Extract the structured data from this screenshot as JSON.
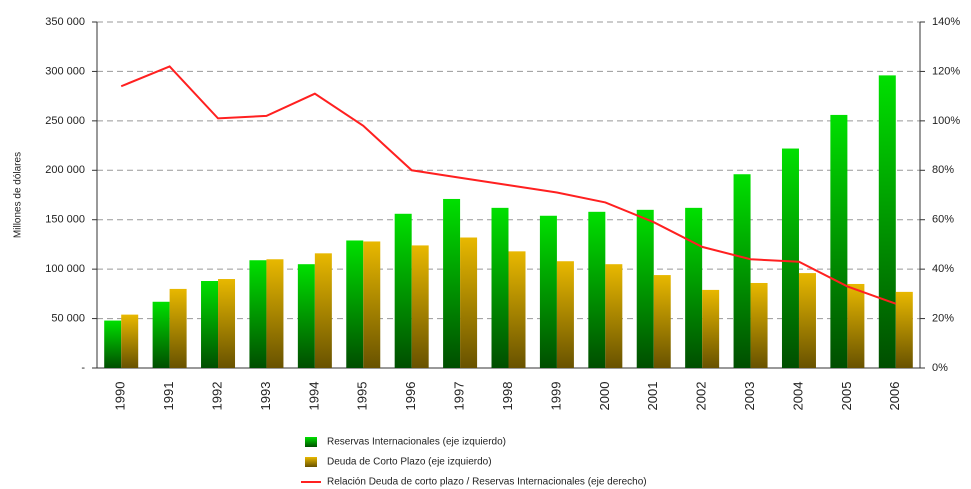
{
  "chart_data": {
    "type": "bar",
    "y_axis_label": "Millones de dólares",
    "categories": [
      "1990",
      "1991",
      "1992",
      "1993",
      "1994",
      "1995",
      "1996",
      "1997",
      "1998",
      "1999",
      "2000",
      "2001",
      "2002",
      "2003",
      "2004",
      "2005",
      "2006"
    ],
    "series": [
      {
        "name": "Reservas Internacionales (eje izquierdo)",
        "type": "bar",
        "color": "#00e000",
        "values": [
          48000,
          67000,
          88000,
          109000,
          105000,
          129000,
          156000,
          171000,
          162000,
          154000,
          158000,
          160000,
          162000,
          196000,
          222000,
          256000,
          296000
        ]
      },
      {
        "name": "Deuda de Corto Plazo (eje izquierdo)",
        "type": "bar",
        "color": "#e8b800",
        "values": [
          54000,
          80000,
          90000,
          110000,
          116000,
          128000,
          124000,
          132000,
          118000,
          108000,
          105000,
          94000,
          79000,
          86000,
          96000,
          85000,
          77000
        ]
      },
      {
        "name": "Relación Deuda de corto plazo / Reservas Internacionales (eje derecho)",
        "type": "line",
        "axis": "y2",
        "color": "#ff2020",
        "values": [
          114,
          122,
          101,
          102,
          111,
          98,
          80,
          77,
          74,
          71,
          67,
          59,
          49,
          44,
          43,
          33,
          26
        ]
      }
    ],
    "ylim": [
      0,
      350000
    ],
    "yticks": [
      {
        "value": 0,
        "label": "-"
      },
      {
        "value": 50000,
        "label": "50 000"
      },
      {
        "value": 100000,
        "label": "100 000"
      },
      {
        "value": 150000,
        "label": "150 000"
      },
      {
        "value": 200000,
        "label": "200 000"
      },
      {
        "value": 250000,
        "label": "250 000"
      },
      {
        "value": 300000,
        "label": "300 000"
      },
      {
        "value": 350000,
        "label": "350 000"
      }
    ],
    "y2lim": [
      0,
      140
    ],
    "y2ticks": [
      {
        "value": 0,
        "label": "0%"
      },
      {
        "value": 20,
        "label": "20%"
      },
      {
        "value": 40,
        "label": "40%"
      },
      {
        "value": 60,
        "label": "60%"
      },
      {
        "value": 80,
        "label": "80%"
      },
      {
        "value": 100,
        "label": "100%"
      },
      {
        "value": 120,
        "label": "120%"
      },
      {
        "value": 140,
        "label": "140%"
      }
    ],
    "grid": true
  }
}
